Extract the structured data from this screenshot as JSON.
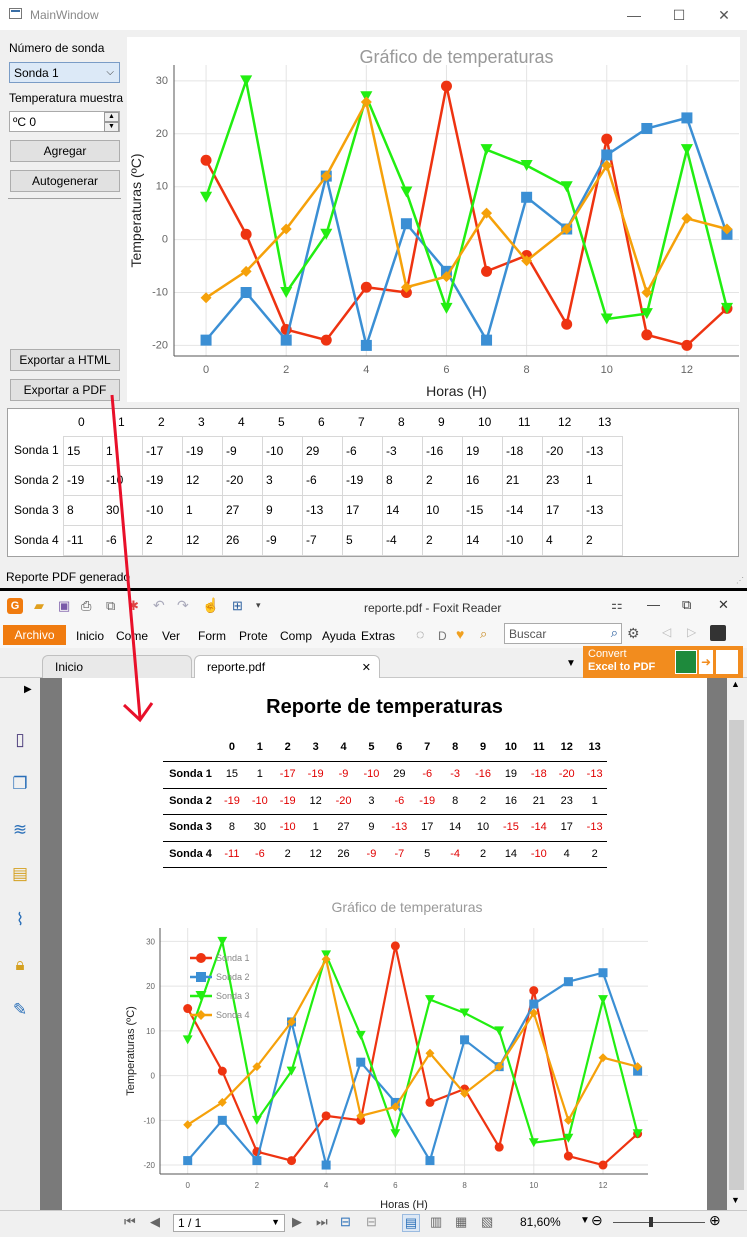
{
  "window": {
    "title": "MainWindow",
    "min": "—",
    "max": "☐",
    "close": "✕"
  },
  "form": {
    "probe_label": "Número de sonda",
    "probe_value": "Sonda 1",
    "temp_label": "Temperatura muestra",
    "temp_value": "ºC 0",
    "add_btn": "Agregar",
    "auto_btn": "Autogenerar",
    "html_btn": "Exportar a HTML",
    "pdf_btn": "Exportar a PDF"
  },
  "status": "Reporte PDF generado",
  "chart_data": [
    {
      "type": "line",
      "title": "Gráfico de temperaturas",
      "xlabel": "Horas (H)",
      "ylabel": "Temperaturas (ºC)",
      "x": [
        0,
        1,
        2,
        3,
        4,
        5,
        6,
        7,
        8,
        9,
        10,
        11,
        12,
        13
      ],
      "ylim": [
        -22,
        33
      ],
      "xlim": [
        -0.8,
        13.3
      ],
      "yticks": [
        -20,
        -10,
        0,
        10,
        20,
        30
      ],
      "xticks": [
        0,
        2,
        4,
        6,
        8,
        10,
        12
      ],
      "grid": true,
      "series": [
        {
          "name": "Sonda 1",
          "color": "#ee3311",
          "marker": "circle",
          "values": [
            15,
            1,
            -17,
            -19,
            -9,
            -10,
            29,
            -6,
            -3,
            -16,
            19,
            -18,
            -20,
            -13
          ]
        },
        {
          "name": "Sonda 2",
          "color": "#3b8fd4",
          "marker": "square",
          "values": [
            -19,
            -10,
            -19,
            12,
            -20,
            3,
            -6,
            -19,
            8,
            2,
            16,
            21,
            23,
            1
          ]
        },
        {
          "name": "Sonda 3",
          "color": "#22ee11",
          "marker": "triangle",
          "values": [
            8,
            30,
            -10,
            1,
            27,
            9,
            -13,
            17,
            14,
            10,
            -15,
            -14,
            17,
            -13
          ]
        },
        {
          "name": "Sonda 4",
          "color": "#f5a10a",
          "marker": "diamond",
          "values": [
            -11,
            -6,
            2,
            12,
            26,
            -9,
            -7,
            5,
            -4,
            2,
            14,
            -10,
            4,
            2
          ]
        }
      ]
    }
  ],
  "table": {
    "cols": [
      "0",
      "1",
      "2",
      "3",
      "4",
      "5",
      "6",
      "7",
      "8",
      "9",
      "10",
      "11",
      "12",
      "13"
    ],
    "rows": [
      {
        "name": "Sonda 1",
        "values": [
          "15",
          "1",
          "-17",
          "-19",
          "-9",
          "-10",
          "29",
          "-6",
          "-3",
          "-16",
          "19",
          "-18",
          "-20",
          "-13"
        ]
      },
      {
        "name": "Sonda 2",
        "values": [
          "-19",
          "-10",
          "-19",
          "12",
          "-20",
          "3",
          "-6",
          "-19",
          "8",
          "2",
          "16",
          "21",
          "23",
          "1"
        ]
      },
      {
        "name": "Sonda 3",
        "values": [
          "8",
          "30",
          "-10",
          "1",
          "27",
          "9",
          "-13",
          "17",
          "14",
          "10",
          "-15",
          "-14",
          "17",
          "-13"
        ]
      },
      {
        "name": "Sonda 4",
        "values": [
          "-11",
          "-6",
          "2",
          "12",
          "26",
          "-9",
          "-7",
          "5",
          "-4",
          "2",
          "14",
          "-10",
          "4",
          "2"
        ]
      }
    ]
  },
  "foxit": {
    "title": "reporte.pdf - Foxit Reader",
    "menu": [
      "Archivo",
      "Inicio",
      "Come",
      "Ver",
      "Form",
      "Prote",
      "Comp",
      "Ayuda",
      "Extras"
    ],
    "letter_d": "D",
    "search_placeholder": "Buscar",
    "tabs": [
      "Inicio",
      "reporte.pdf"
    ],
    "convert_line1": "Convert",
    "convert_line2": "Excel to PDF",
    "page_title": "Reporte de temperaturas",
    "chart_title": "Gráfico de temperaturas",
    "page_value": "1 / 1",
    "zoom": "81,60%",
    "neg_color": "#e00000"
  }
}
